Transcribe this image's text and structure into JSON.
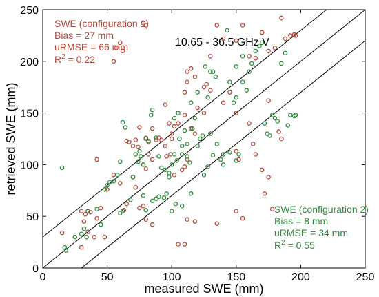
{
  "chart_data": {
    "type": "scatter",
    "title": "10.65 - 36.5 GHz V",
    "xlabel": "measured SWE (mm)",
    "ylabel": "retrieved SWE (mm)",
    "xlim": [
      0,
      250
    ],
    "ylim": [
      0,
      250
    ],
    "xticks": [
      "0",
      "50",
      "100",
      "150",
      "200",
      "250"
    ],
    "yticks": [
      "0",
      "50",
      "100",
      "150",
      "200",
      "250"
    ],
    "reference_lines": [
      {
        "intercept": 0,
        "slope": 1
      },
      {
        "intercept": 30,
        "slope": 1
      },
      {
        "intercept": -30,
        "slope": 1
      }
    ],
    "colors": {
      "series1": "#b5493a",
      "series2": "#2e8b3e",
      "lines": "#000000"
    },
    "annotations": {
      "series1": {
        "label": "SWE (configuration 1)",
        "bias": "Bias = 27 mm",
        "urmse": "uRMSE = 66 mm",
        "r2_prefix": "R",
        "r2_sup": "2",
        "r2_value": " = 0.22"
      },
      "series2": {
        "label": "SWE (configuration 2)",
        "bias": "Bias = 8 mm",
        "urmse": "uRMSE = 34 mm",
        "r2_prefix": "R",
        "r2_sup": "2",
        "r2_value": " = 0.55"
      }
    },
    "series": [
      {
        "points": [
          [
            15,
            34
          ],
          [
            30,
            55
          ],
          [
            33,
            52
          ],
          [
            35,
            55
          ],
          [
            37,
            54
          ],
          [
            32,
            45
          ],
          [
            55,
            200
          ],
          [
            57,
            213
          ],
          [
            62,
            210
          ],
          [
            60,
            218
          ],
          [
            78,
            237
          ],
          [
            80,
            235
          ],
          [
            75,
            136
          ],
          [
            65,
            123
          ],
          [
            70,
            118
          ],
          [
            67,
            122
          ],
          [
            72,
            124
          ],
          [
            74,
            117
          ],
          [
            80,
            126
          ],
          [
            82,
            122
          ],
          [
            88,
            124
          ],
          [
            90,
            126
          ],
          [
            100,
            130
          ],
          [
            102,
            137
          ],
          [
            105,
            140
          ],
          [
            110,
            148
          ],
          [
            112,
            190
          ],
          [
            115,
            193
          ],
          [
            118,
            185
          ],
          [
            125,
            175
          ],
          [
            127,
            178
          ],
          [
            130,
            205
          ],
          [
            135,
            235
          ],
          [
            140,
            222
          ],
          [
            150,
            220
          ],
          [
            155,
            235
          ],
          [
            160,
            205
          ],
          [
            165,
            203
          ],
          [
            170,
            228
          ],
          [
            175,
            210
          ],
          [
            180,
            213
          ],
          [
            185,
            242
          ],
          [
            188,
            222
          ],
          [
            192,
            225
          ],
          [
            195,
            226
          ],
          [
            196,
            225
          ],
          [
            160,
            140
          ],
          [
            163,
            120
          ],
          [
            165,
            110
          ],
          [
            170,
            95
          ],
          [
            172,
            72
          ],
          [
            175,
            88
          ],
          [
            178,
            57
          ],
          [
            183,
            132
          ],
          [
            185,
            125
          ],
          [
            150,
            113
          ],
          [
            152,
            105
          ],
          [
            150,
            55
          ],
          [
            155,
            48
          ],
          [
            135,
            43
          ],
          [
            118,
            45
          ],
          [
            112,
            47
          ],
          [
            105,
            23
          ],
          [
            110,
            23
          ],
          [
            85,
            42
          ],
          [
            80,
            47
          ],
          [
            78,
            60
          ],
          [
            75,
            58
          ],
          [
            78,
            100
          ],
          [
            80,
            96
          ],
          [
            82,
            110
          ],
          [
            85,
            105
          ],
          [
            88,
            126
          ],
          [
            92,
            124
          ],
          [
            95,
            118
          ],
          [
            96,
            108
          ],
          [
            99,
            110
          ],
          [
            100,
            125
          ],
          [
            115,
            135
          ],
          [
            120,
            155
          ],
          [
            125,
            150
          ],
          [
            110,
            170
          ],
          [
            112,
            180
          ],
          [
            95,
            158
          ],
          [
            98,
            140
          ],
          [
            85,
            135
          ],
          [
            70,
            88
          ],
          [
            72,
            78
          ],
          [
            60,
            82
          ],
          [
            55,
            90
          ],
          [
            50,
            76
          ],
          [
            42,
            105
          ],
          [
            45,
            58
          ],
          [
            40,
            30
          ],
          [
            30,
            20
          ],
          [
            35,
            35
          ],
          [
            42,
            48
          ],
          [
            48,
            30
          ],
          [
            65,
            62
          ],
          [
            63,
            56
          ],
          [
            175,
            162
          ],
          [
            150,
            150
          ],
          [
            145,
            170
          ],
          [
            140,
            160
          ],
          [
            130,
            172
          ],
          [
            118,
            130
          ],
          [
            110,
            98
          ],
          [
            102,
            90
          ],
          [
            108,
            95
          ],
          [
            112,
            105
          ]
        ]
      },
      {
        "points": [
          [
            15,
            97
          ],
          [
            17,
            20
          ],
          [
            18,
            17
          ],
          [
            25,
            30
          ],
          [
            30,
            33
          ],
          [
            32,
            38
          ],
          [
            34,
            30
          ],
          [
            35,
            55
          ],
          [
            42,
            57
          ],
          [
            45,
            42
          ],
          [
            48,
            76
          ],
          [
            50,
            80
          ],
          [
            52,
            83
          ],
          [
            55,
            84
          ],
          [
            58,
            90
          ],
          [
            60,
            103
          ],
          [
            62,
            141
          ],
          [
            64,
            136
          ],
          [
            68,
            66
          ],
          [
            70,
            88
          ],
          [
            72,
            110
          ],
          [
            74,
            103
          ],
          [
            75,
            113
          ],
          [
            76,
            108
          ],
          [
            78,
            100
          ],
          [
            80,
            125
          ],
          [
            82,
            123
          ],
          [
            84,
            148
          ],
          [
            85,
            153
          ],
          [
            88,
            126
          ],
          [
            90,
            108
          ],
          [
            92,
            97
          ],
          [
            95,
            95
          ],
          [
            98,
            92
          ],
          [
            100,
            100
          ],
          [
            102,
            110
          ],
          [
            104,
            104
          ],
          [
            106,
            125
          ],
          [
            108,
            118
          ],
          [
            110,
            133
          ],
          [
            112,
            120
          ],
          [
            114,
            102
          ],
          [
            116,
            135
          ],
          [
            118,
            145
          ],
          [
            120,
            118
          ],
          [
            122,
            125
          ],
          [
            124,
            128
          ],
          [
            126,
            195
          ],
          [
            128,
            165
          ],
          [
            130,
            130
          ],
          [
            132,
            190
          ],
          [
            134,
            185
          ],
          [
            138,
            105
          ],
          [
            140,
            110
          ],
          [
            143,
            230
          ],
          [
            145,
            180
          ],
          [
            150,
            195
          ],
          [
            155,
            205
          ],
          [
            158,
            172
          ],
          [
            160,
            190
          ],
          [
            162,
            198
          ],
          [
            165,
            210
          ],
          [
            168,
            215
          ],
          [
            170,
            218
          ],
          [
            172,
            140
          ],
          [
            174,
            130
          ],
          [
            176,
            128
          ],
          [
            178,
            148
          ],
          [
            180,
            145
          ],
          [
            182,
            142
          ],
          [
            185,
            198
          ],
          [
            188,
            208
          ],
          [
            190,
            138
          ],
          [
            192,
            148
          ],
          [
            195,
            147
          ],
          [
            196,
            148
          ],
          [
            150,
            104
          ],
          [
            152,
            110
          ],
          [
            100,
            55
          ],
          [
            103,
            62
          ],
          [
            108,
            60
          ],
          [
            115,
            72
          ],
          [
            60,
            53
          ],
          [
            62,
            55
          ],
          [
            78,
            70
          ],
          [
            80,
            56
          ],
          [
            85,
            65
          ],
          [
            88,
            67
          ],
          [
            90,
            69
          ],
          [
            94,
            68
          ],
          [
            96,
            72
          ],
          [
            98,
            88
          ],
          [
            108,
            110
          ],
          [
            112,
            108
          ],
          [
            125,
            90
          ],
          [
            128,
            98
          ],
          [
            132,
            109
          ],
          [
            135,
            120
          ],
          [
            140,
            100
          ],
          [
            145,
            112
          ],
          [
            102,
            145
          ],
          [
            105,
            150
          ],
          [
            115,
            160
          ],
          [
            120,
            170
          ],
          [
            130,
            190
          ],
          [
            148,
            160
          ],
          [
            150,
            165
          ],
          [
            155,
            180
          ]
        ]
      }
    ]
  }
}
